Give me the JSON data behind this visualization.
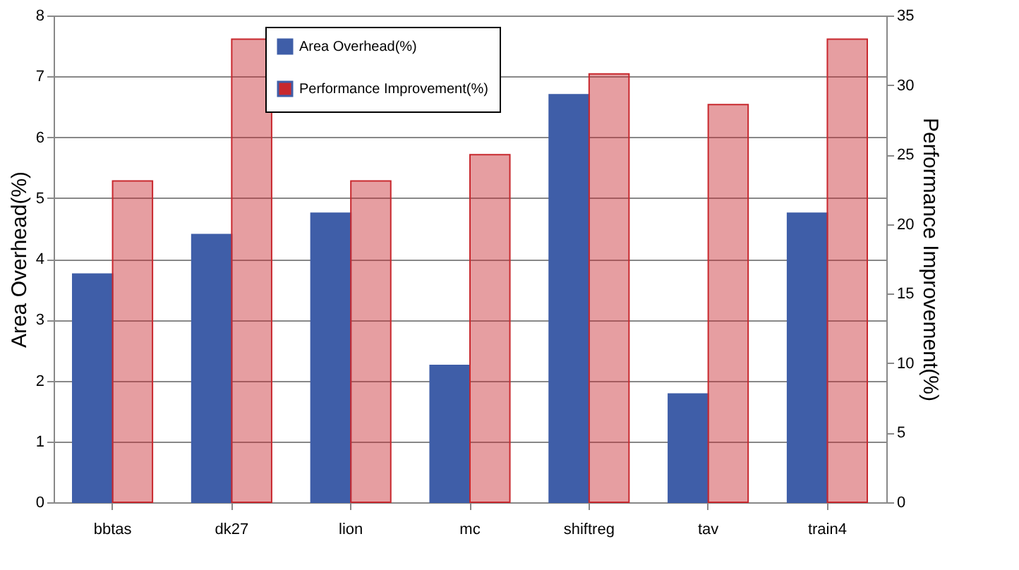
{
  "chart_data": {
    "type": "bar",
    "categories": [
      "bbtas",
      "dk27",
      "lion",
      "mc",
      "shiftreg",
      "tav",
      "train4"
    ],
    "series": [
      {
        "name": "Area Overhead(%)",
        "color": "#3f5ea8",
        "values": [
          3.75,
          4.4,
          4.75,
          2.25,
          6.7,
          1.78,
          4.75
        ]
      },
      {
        "name": "Performance Improvement(%)",
        "color": "#c8282e",
        "axis": "y2",
        "values": [
          23.1,
          33.3,
          23.1,
          25.0,
          30.8,
          28.6,
          33.3
        ]
      }
    ],
    "ylabel": "Area Overhead(%)",
    "y2label": "Performance Improvement(%)",
    "ylim": [
      0,
      8
    ],
    "yticks": [
      0,
      1,
      2,
      3,
      4,
      5,
      6,
      7,
      8
    ],
    "y2lim": [
      0,
      35
    ],
    "y2ticks": [
      0,
      5,
      10,
      15,
      20,
      25,
      30,
      35
    ],
    "grid": "y",
    "legend": "top"
  }
}
